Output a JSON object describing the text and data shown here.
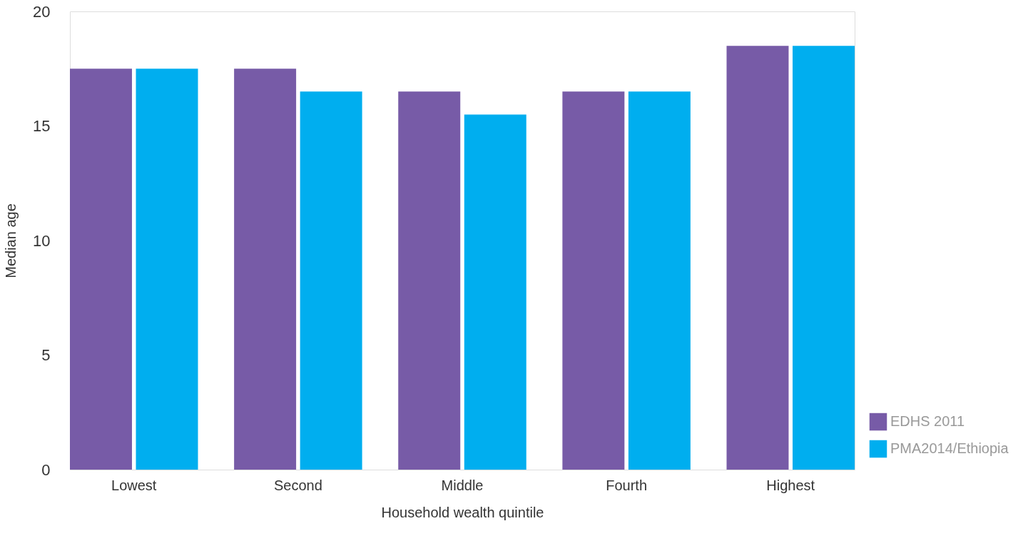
{
  "chart_data": {
    "type": "bar",
    "xlabel": "Household wealth quintile",
    "ylabel": "Median age",
    "categories": [
      "Lowest",
      "Second",
      "Middle",
      "Fourth",
      "Highest"
    ],
    "series": [
      {
        "name": "EDHS 2011",
        "color": "#775ba7",
        "values": [
          17.5,
          17.5,
          16.5,
          16.5,
          18.5
        ]
      },
      {
        "name": "PMA2014/Ethiopia",
        "color": "#00aeef",
        "values": [
          17.5,
          16.5,
          15.5,
          16.5,
          18.5
        ]
      }
    ],
    "ylim": [
      0,
      20
    ],
    "yticks": [
      0,
      5,
      10,
      15,
      20
    ],
    "grid": false,
    "legend": "bottom right"
  }
}
